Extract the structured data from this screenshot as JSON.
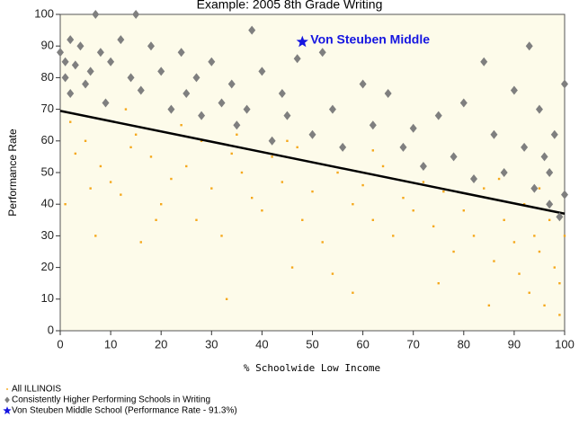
{
  "chart_data": {
    "type": "scatter",
    "title": "Example: 2005 8th Grade Writing",
    "x_label": "% Schoolwide Low Income",
    "y_label": "Performance Rate",
    "annotation": "Von Steuben Middle",
    "xlim": [
      0,
      100
    ],
    "ylim": [
      0,
      100
    ],
    "xticks": [
      0,
      10,
      20,
      30,
      40,
      50,
      60,
      70,
      80,
      90,
      100
    ],
    "yticks": [
      0,
      10,
      20,
      30,
      40,
      50,
      60,
      70,
      80,
      90,
      100
    ],
    "background": "#fdfbea",
    "series": [
      {
        "name": "All ILLINOIS",
        "color": "#f5a81c",
        "marker": "square",
        "x": [
          2,
          3,
          5,
          8,
          10,
          12,
          14,
          15,
          18,
          20,
          22,
          25,
          27,
          28,
          30,
          32,
          34,
          36,
          38,
          40,
          42,
          44,
          45,
          48,
          50,
          52,
          55,
          58,
          60,
          62,
          64,
          66,
          68,
          70,
          72,
          74,
          76,
          78,
          80,
          82,
          84,
          86,
          88,
          90,
          91,
          92,
          93,
          94,
          95,
          96,
          97,
          98,
          99,
          100,
          1,
          6,
          16,
          24,
          35,
          46,
          54,
          62,
          75,
          85,
          7,
          13,
          19,
          33,
          47,
          58,
          87,
          95,
          99
        ],
        "values": [
          66,
          56,
          60,
          52,
          47,
          43,
          58,
          62,
          55,
          40,
          48,
          52,
          35,
          60,
          45,
          30,
          56,
          50,
          42,
          38,
          55,
          47,
          60,
          35,
          44,
          28,
          50,
          40,
          46,
          35,
          52,
          30,
          42,
          38,
          47,
          33,
          44,
          25,
          38,
          30,
          45,
          22,
          35,
          28,
          18,
          40,
          12,
          30,
          25,
          8,
          35,
          20,
          15,
          30,
          40,
          45,
          28,
          65,
          62,
          20,
          18,
          57,
          15,
          8,
          30,
          70,
          35,
          10,
          58,
          12,
          48,
          45,
          5
        ]
      },
      {
        "name": "Consistently Higher Performing Schools in Writing",
        "color": "#7f7f7f",
        "marker": "diamond",
        "x": [
          0,
          1,
          1,
          2,
          2,
          3,
          4,
          5,
          6,
          7,
          8,
          9,
          10,
          12,
          14,
          15,
          16,
          18,
          20,
          22,
          24,
          25,
          27,
          28,
          30,
          32,
          34,
          35,
          37,
          38,
          40,
          42,
          44,
          45,
          47,
          50,
          52,
          54,
          56,
          60,
          62,
          65,
          68,
          70,
          72,
          75,
          78,
          80,
          82,
          84,
          86,
          88,
          90,
          92,
          93,
          94,
          95,
          96,
          97,
          98,
          99,
          100,
          97,
          100
        ],
        "values": [
          88,
          85,
          80,
          92,
          75,
          84,
          90,
          78,
          82,
          100,
          88,
          72,
          85,
          92,
          80,
          100,
          76,
          90,
          82,
          70,
          88,
          75,
          80,
          68,
          85,
          72,
          78,
          65,
          70,
          95,
          82,
          60,
          75,
          68,
          86,
          62,
          88,
          70,
          58,
          78,
          65,
          75,
          58,
          64,
          52,
          68,
          55,
          72,
          48,
          85,
          62,
          50,
          76,
          58,
          90,
          45,
          70,
          55,
          40,
          62,
          36,
          78,
          50,
          43
        ]
      },
      {
        "name": "Von Steuben Middle School (Performance Rate - 91.3%)",
        "color": "#1515e0",
        "marker": "star",
        "x": [
          48
        ],
        "values": [
          91.3
        ]
      }
    ],
    "trend_line": {
      "color": "#000000",
      "x": [
        0,
        100
      ],
      "values": [
        69.5,
        37
      ]
    }
  }
}
